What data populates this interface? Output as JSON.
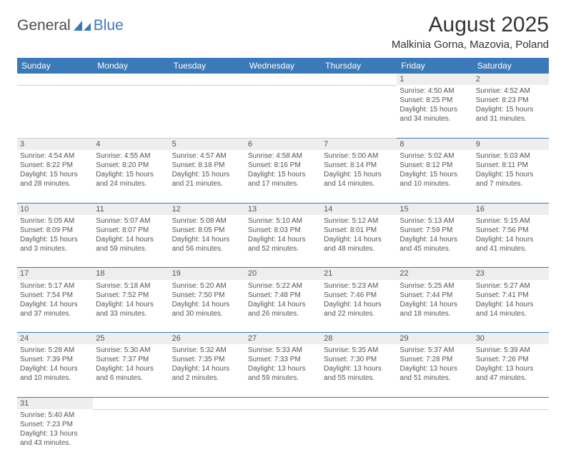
{
  "logo": {
    "text1": "General",
    "text2": "Blue"
  },
  "title": "August 2025",
  "location": "Malkinia Gorna, Mazovia, Poland",
  "headers": [
    "Sunday",
    "Monday",
    "Tuesday",
    "Wednesday",
    "Thursday",
    "Friday",
    "Saturday"
  ],
  "colors": {
    "header_bg": "#3a7ab8",
    "daynum_bg": "#eeeeee",
    "border": "#3a7ab8"
  },
  "weeks": [
    [
      null,
      null,
      null,
      null,
      null,
      {
        "d": "1",
        "sr": "Sunrise: 4:50 AM",
        "ss": "Sunset: 8:25 PM",
        "dl1": "Daylight: 15 hours",
        "dl2": "and 34 minutes."
      },
      {
        "d": "2",
        "sr": "Sunrise: 4:52 AM",
        "ss": "Sunset: 8:23 PM",
        "dl1": "Daylight: 15 hours",
        "dl2": "and 31 minutes."
      }
    ],
    [
      {
        "d": "3",
        "sr": "Sunrise: 4:54 AM",
        "ss": "Sunset: 8:22 PM",
        "dl1": "Daylight: 15 hours",
        "dl2": "and 28 minutes."
      },
      {
        "d": "4",
        "sr": "Sunrise: 4:55 AM",
        "ss": "Sunset: 8:20 PM",
        "dl1": "Daylight: 15 hours",
        "dl2": "and 24 minutes."
      },
      {
        "d": "5",
        "sr": "Sunrise: 4:57 AM",
        "ss": "Sunset: 8:18 PM",
        "dl1": "Daylight: 15 hours",
        "dl2": "and 21 minutes."
      },
      {
        "d": "6",
        "sr": "Sunrise: 4:58 AM",
        "ss": "Sunset: 8:16 PM",
        "dl1": "Daylight: 15 hours",
        "dl2": "and 17 minutes."
      },
      {
        "d": "7",
        "sr": "Sunrise: 5:00 AM",
        "ss": "Sunset: 8:14 PM",
        "dl1": "Daylight: 15 hours",
        "dl2": "and 14 minutes."
      },
      {
        "d": "8",
        "sr": "Sunrise: 5:02 AM",
        "ss": "Sunset: 8:12 PM",
        "dl1": "Daylight: 15 hours",
        "dl2": "and 10 minutes."
      },
      {
        "d": "9",
        "sr": "Sunrise: 5:03 AM",
        "ss": "Sunset: 8:11 PM",
        "dl1": "Daylight: 15 hours",
        "dl2": "and 7 minutes."
      }
    ],
    [
      {
        "d": "10",
        "sr": "Sunrise: 5:05 AM",
        "ss": "Sunset: 8:09 PM",
        "dl1": "Daylight: 15 hours",
        "dl2": "and 3 minutes."
      },
      {
        "d": "11",
        "sr": "Sunrise: 5:07 AM",
        "ss": "Sunset: 8:07 PM",
        "dl1": "Daylight: 14 hours",
        "dl2": "and 59 minutes."
      },
      {
        "d": "12",
        "sr": "Sunrise: 5:08 AM",
        "ss": "Sunset: 8:05 PM",
        "dl1": "Daylight: 14 hours",
        "dl2": "and 56 minutes."
      },
      {
        "d": "13",
        "sr": "Sunrise: 5:10 AM",
        "ss": "Sunset: 8:03 PM",
        "dl1": "Daylight: 14 hours",
        "dl2": "and 52 minutes."
      },
      {
        "d": "14",
        "sr": "Sunrise: 5:12 AM",
        "ss": "Sunset: 8:01 PM",
        "dl1": "Daylight: 14 hours",
        "dl2": "and 48 minutes."
      },
      {
        "d": "15",
        "sr": "Sunrise: 5:13 AM",
        "ss": "Sunset: 7:59 PM",
        "dl1": "Daylight: 14 hours",
        "dl2": "and 45 minutes."
      },
      {
        "d": "16",
        "sr": "Sunrise: 5:15 AM",
        "ss": "Sunset: 7:56 PM",
        "dl1": "Daylight: 14 hours",
        "dl2": "and 41 minutes."
      }
    ],
    [
      {
        "d": "17",
        "sr": "Sunrise: 5:17 AM",
        "ss": "Sunset: 7:54 PM",
        "dl1": "Daylight: 14 hours",
        "dl2": "and 37 minutes."
      },
      {
        "d": "18",
        "sr": "Sunrise: 5:18 AM",
        "ss": "Sunset: 7:52 PM",
        "dl1": "Daylight: 14 hours",
        "dl2": "and 33 minutes."
      },
      {
        "d": "19",
        "sr": "Sunrise: 5:20 AM",
        "ss": "Sunset: 7:50 PM",
        "dl1": "Daylight: 14 hours",
        "dl2": "and 30 minutes."
      },
      {
        "d": "20",
        "sr": "Sunrise: 5:22 AM",
        "ss": "Sunset: 7:48 PM",
        "dl1": "Daylight: 14 hours",
        "dl2": "and 26 minutes."
      },
      {
        "d": "21",
        "sr": "Sunrise: 5:23 AM",
        "ss": "Sunset: 7:46 PM",
        "dl1": "Daylight: 14 hours",
        "dl2": "and 22 minutes."
      },
      {
        "d": "22",
        "sr": "Sunrise: 5:25 AM",
        "ss": "Sunset: 7:44 PM",
        "dl1": "Daylight: 14 hours",
        "dl2": "and 18 minutes."
      },
      {
        "d": "23",
        "sr": "Sunrise: 5:27 AM",
        "ss": "Sunset: 7:41 PM",
        "dl1": "Daylight: 14 hours",
        "dl2": "and 14 minutes."
      }
    ],
    [
      {
        "d": "24",
        "sr": "Sunrise: 5:28 AM",
        "ss": "Sunset: 7:39 PM",
        "dl1": "Daylight: 14 hours",
        "dl2": "and 10 minutes."
      },
      {
        "d": "25",
        "sr": "Sunrise: 5:30 AM",
        "ss": "Sunset: 7:37 PM",
        "dl1": "Daylight: 14 hours",
        "dl2": "and 6 minutes."
      },
      {
        "d": "26",
        "sr": "Sunrise: 5:32 AM",
        "ss": "Sunset: 7:35 PM",
        "dl1": "Daylight: 14 hours",
        "dl2": "and 2 minutes."
      },
      {
        "d": "27",
        "sr": "Sunrise: 5:33 AM",
        "ss": "Sunset: 7:33 PM",
        "dl1": "Daylight: 13 hours",
        "dl2": "and 59 minutes."
      },
      {
        "d": "28",
        "sr": "Sunrise: 5:35 AM",
        "ss": "Sunset: 7:30 PM",
        "dl1": "Daylight: 13 hours",
        "dl2": "and 55 minutes."
      },
      {
        "d": "29",
        "sr": "Sunrise: 5:37 AM",
        "ss": "Sunset: 7:28 PM",
        "dl1": "Daylight: 13 hours",
        "dl2": "and 51 minutes."
      },
      {
        "d": "30",
        "sr": "Sunrise: 5:39 AM",
        "ss": "Sunset: 7:26 PM",
        "dl1": "Daylight: 13 hours",
        "dl2": "and 47 minutes."
      }
    ],
    [
      {
        "d": "31",
        "sr": "Sunrise: 5:40 AM",
        "ss": "Sunset: 7:23 PM",
        "dl1": "Daylight: 13 hours",
        "dl2": "and 43 minutes."
      },
      null,
      null,
      null,
      null,
      null,
      null
    ]
  ]
}
